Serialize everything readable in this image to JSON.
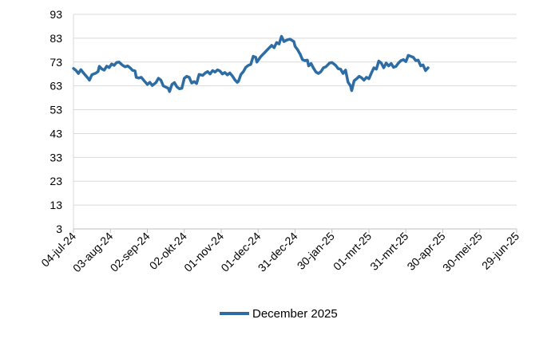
{
  "chart_data": {
    "type": "line",
    "title": "",
    "xlabel": "",
    "ylabel": "",
    "ylim": [
      3,
      93
    ],
    "y_ticks": [
      3,
      13,
      23,
      33,
      43,
      53,
      63,
      73,
      83,
      93
    ],
    "x_tick_labels": [
      "04-jul-24",
      "03-aug-24",
      "02-sep-24",
      "02-okt-24",
      "01-nov-24",
      "01-dec-24",
      "31-dec-24",
      "30-jan-25",
      "01-mrt-25",
      "31-mrt-25",
      "30-apr-25",
      "30-mei-25",
      "29-jun-25"
    ],
    "grid": "horizontal",
    "legend_position": "bottom",
    "series": [
      {
        "name": "December 2025",
        "color": "#2e6da4",
        "points": [
          [
            "04-jul-24",
            70.3
          ],
          [
            "06-jul-24",
            69.5
          ],
          [
            "08-jul-24",
            68.2
          ],
          [
            "10-jul-24",
            69.8
          ],
          [
            "12-jul-24",
            68.5
          ],
          [
            "14-jul-24",
            67.3
          ],
          [
            "16-jul-24",
            66.1
          ],
          [
            "17-jul-24",
            65.4
          ],
          [
            "19-jul-24",
            67.7
          ],
          [
            "22-jul-24",
            68.3
          ],
          [
            "24-jul-24",
            69.0
          ],
          [
            "25-jul-24",
            71.2
          ],
          [
            "27-jul-24",
            70.1
          ],
          [
            "29-jul-24",
            69.6
          ],
          [
            "31-jul-24",
            71.3
          ],
          [
            "02-aug-24",
            70.7
          ],
          [
            "04-aug-24",
            72.2
          ],
          [
            "06-aug-24",
            71.6
          ],
          [
            "08-aug-24",
            72.8
          ],
          [
            "10-aug-24",
            73.0
          ],
          [
            "13-aug-24",
            71.6
          ],
          [
            "15-aug-24",
            71.0
          ],
          [
            "17-aug-24",
            71.4
          ],
          [
            "19-aug-24",
            70.6
          ],
          [
            "21-aug-24",
            69.5
          ],
          [
            "23-aug-24",
            69.3
          ],
          [
            "24-aug-24",
            66.6
          ],
          [
            "26-aug-24",
            66.3
          ],
          [
            "28-aug-24",
            66.6
          ],
          [
            "31-aug-24",
            64.8
          ],
          [
            "02-sep-24",
            63.6
          ],
          [
            "04-sep-24",
            64.5
          ],
          [
            "06-sep-24",
            63.2
          ],
          [
            "09-sep-24",
            64.4
          ],
          [
            "11-sep-24",
            66.2
          ],
          [
            "13-sep-24",
            65.4
          ],
          [
            "15-sep-24",
            63.0
          ],
          [
            "17-sep-24",
            62.5
          ],
          [
            "19-sep-24",
            62.0
          ],
          [
            "20-sep-24",
            60.6
          ],
          [
            "22-sep-24",
            63.6
          ],
          [
            "24-sep-24",
            64.4
          ],
          [
            "26-sep-24",
            62.6
          ],
          [
            "28-sep-24",
            61.8
          ],
          [
            "30-sep-24",
            62.0
          ],
          [
            "02-okt-24",
            66.2
          ],
          [
            "04-okt-24",
            67.0
          ],
          [
            "06-okt-24",
            66.6
          ],
          [
            "08-okt-24",
            64.2
          ],
          [
            "10-okt-24",
            64.8
          ],
          [
            "12-okt-24",
            64.0
          ],
          [
            "14-okt-24",
            67.8
          ],
          [
            "17-okt-24",
            67.4
          ],
          [
            "19-okt-24",
            68.4
          ],
          [
            "21-okt-24",
            69.0
          ],
          [
            "23-okt-24",
            68.0
          ],
          [
            "25-okt-24",
            69.4
          ],
          [
            "27-okt-24",
            68.8
          ],
          [
            "29-okt-24",
            69.7
          ],
          [
            "31-okt-24",
            69.2
          ],
          [
            "02-nov-24",
            68.0
          ],
          [
            "04-nov-24",
            68.6
          ],
          [
            "06-nov-24",
            67.6
          ],
          [
            "08-nov-24",
            68.4
          ],
          [
            "10-nov-24",
            67.2
          ],
          [
            "12-nov-24",
            65.6
          ],
          [
            "14-nov-24",
            64.5
          ],
          [
            "15-nov-24",
            64.9
          ],
          [
            "17-nov-24",
            67.8
          ],
          [
            "19-nov-24",
            69.0
          ],
          [
            "21-nov-24",
            70.8
          ],
          [
            "23-nov-24",
            71.6
          ],
          [
            "25-nov-24",
            72.0
          ],
          [
            "27-nov-24",
            75.4
          ],
          [
            "29-nov-24",
            75.0
          ],
          [
            "30-nov-24",
            73.0
          ],
          [
            "03-dec-24",
            75.2
          ],
          [
            "06-dec-24",
            76.8
          ],
          [
            "09-dec-24",
            78.4
          ],
          [
            "12-dec-24",
            80.0
          ],
          [
            "14-dec-24",
            79.0
          ],
          [
            "16-dec-24",
            81.2
          ],
          [
            "18-dec-24",
            80.6
          ],
          [
            "20-dec-24",
            83.8
          ],
          [
            "22-dec-24",
            81.6
          ],
          [
            "24-dec-24",
            82.2
          ],
          [
            "27-dec-24",
            82.6
          ],
          [
            "30-dec-24",
            81.6
          ],
          [
            "31-dec-24",
            79.6
          ],
          [
            "02-jan-25",
            78.2
          ],
          [
            "04-jan-25",
            76.4
          ],
          [
            "06-jan-25",
            74.0
          ],
          [
            "08-jan-25",
            73.6
          ],
          [
            "10-jan-25",
            73.8
          ],
          [
            "11-jan-25",
            71.4
          ],
          [
            "13-jan-25",
            72.4
          ],
          [
            "15-jan-25",
            70.4
          ],
          [
            "17-jan-25",
            68.8
          ],
          [
            "19-jan-25",
            68.2
          ],
          [
            "21-jan-25",
            69.0
          ],
          [
            "23-jan-25",
            70.6
          ],
          [
            "25-jan-25",
            71.0
          ],
          [
            "28-jan-25",
            72.6
          ],
          [
            "30-jan-25",
            72.8
          ],
          [
            "02-feb-25",
            71.6
          ],
          [
            "04-feb-25",
            70.2
          ],
          [
            "06-feb-25",
            70.0
          ],
          [
            "08-feb-25",
            68.2
          ],
          [
            "10-feb-25",
            69.6
          ],
          [
            "12-feb-25",
            64.6
          ],
          [
            "14-feb-25",
            63.0
          ],
          [
            "15-feb-25",
            61.0
          ],
          [
            "17-feb-25",
            65.2
          ],
          [
            "19-feb-25",
            66.0
          ],
          [
            "21-feb-25",
            67.0
          ],
          [
            "23-feb-25",
            66.4
          ],
          [
            "25-feb-25",
            65.4
          ],
          [
            "27-feb-25",
            66.6
          ],
          [
            "01-mrt-25",
            66.0
          ],
          [
            "03-mrt-25",
            68.4
          ],
          [
            "05-mrt-25",
            70.6
          ],
          [
            "07-mrt-25",
            70.0
          ],
          [
            "09-mrt-25",
            73.4
          ],
          [
            "11-mrt-25",
            72.6
          ],
          [
            "13-mrt-25",
            70.6
          ],
          [
            "15-mrt-25",
            72.6
          ],
          [
            "17-mrt-25",
            71.4
          ],
          [
            "19-mrt-25",
            72.4
          ],
          [
            "21-mrt-25",
            70.8
          ],
          [
            "23-mrt-25",
            71.2
          ],
          [
            "25-mrt-25",
            72.6
          ],
          [
            "27-mrt-25",
            73.6
          ],
          [
            "29-mrt-25",
            74.0
          ],
          [
            "31-mrt-25",
            73.2
          ],
          [
            "02-apr-25",
            75.8
          ],
          [
            "04-apr-25",
            75.4
          ],
          [
            "06-apr-25",
            75.0
          ],
          [
            "08-apr-25",
            73.6
          ],
          [
            "10-apr-25",
            73.8
          ],
          [
            "12-apr-25",
            71.4
          ],
          [
            "14-apr-25",
            71.8
          ],
          [
            "16-apr-25",
            69.4
          ],
          [
            "18-apr-25",
            70.6
          ]
        ]
      }
    ]
  }
}
